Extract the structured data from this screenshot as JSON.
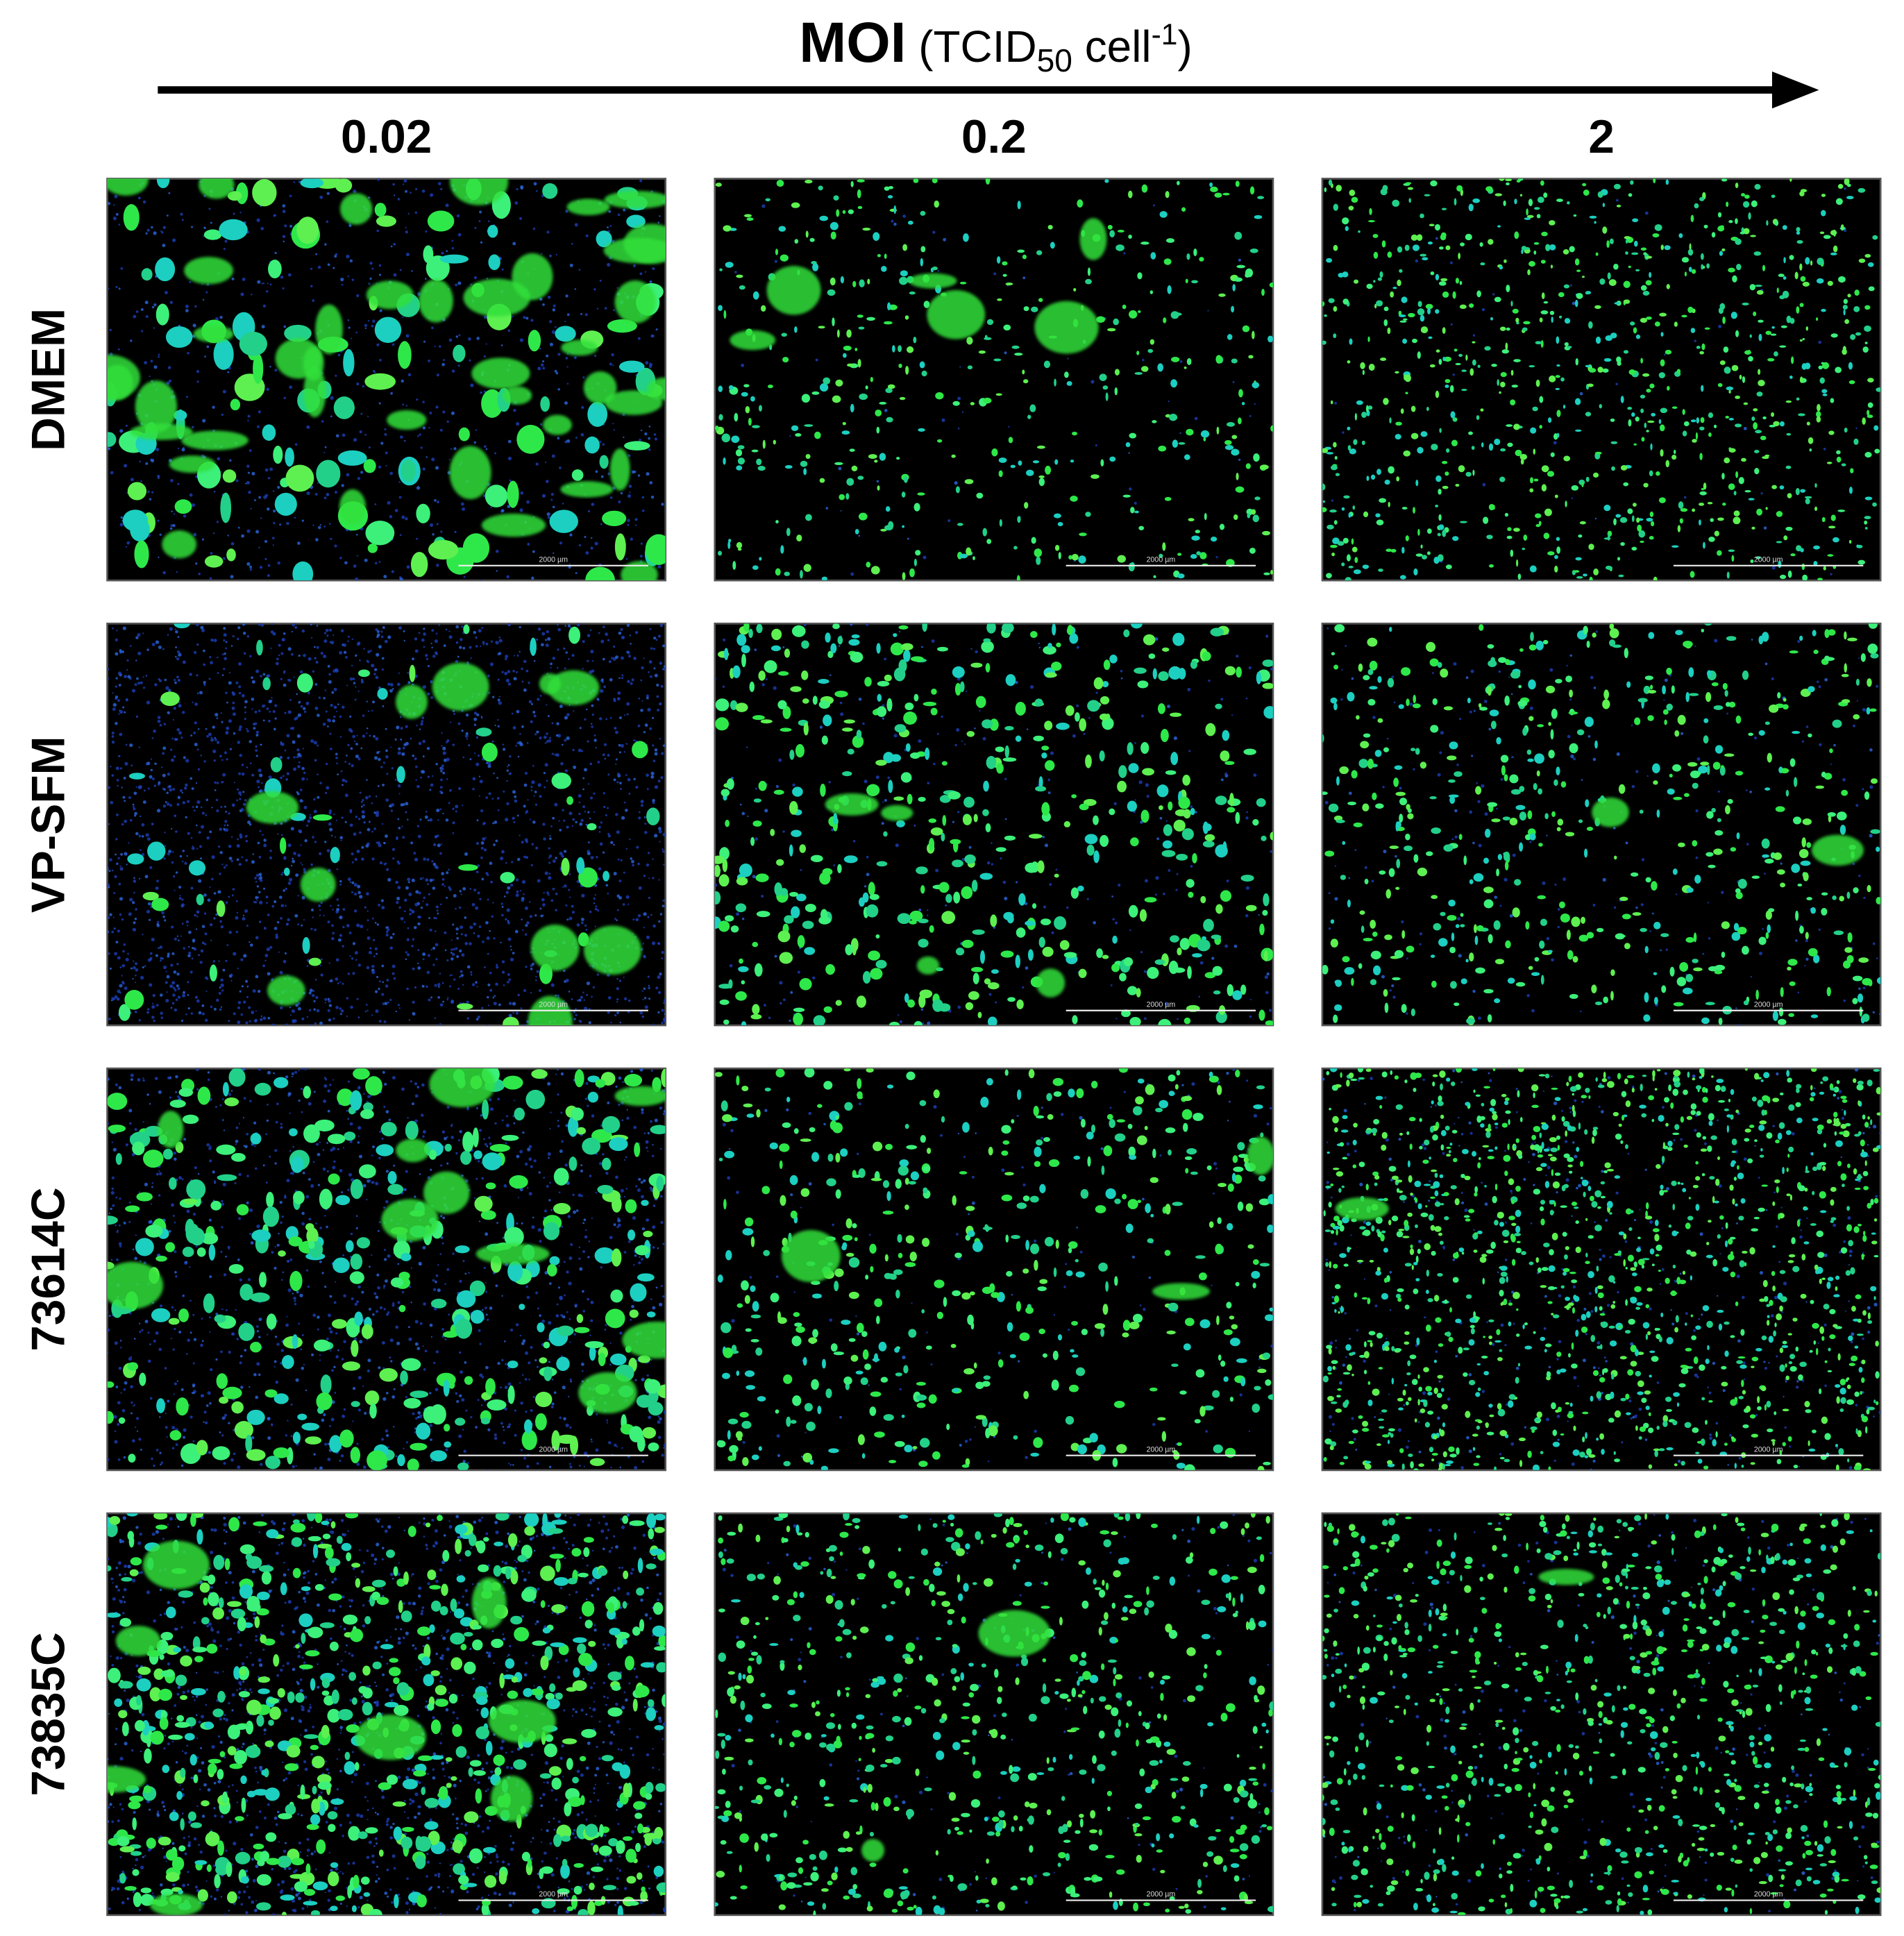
{
  "header": {
    "title": "MOI",
    "unit_prefix": "(TCID",
    "unit_sub": "50",
    "unit_mid": " cell",
    "unit_sup": "-1",
    "unit_suffix": ")"
  },
  "columns": [
    "0.02",
    "0.2",
    "2"
  ],
  "rows": [
    "DMEM",
    "VP-SFM",
    "73614C",
    "73835C"
  ],
  "scale_bar_label": "2000 µm"
}
